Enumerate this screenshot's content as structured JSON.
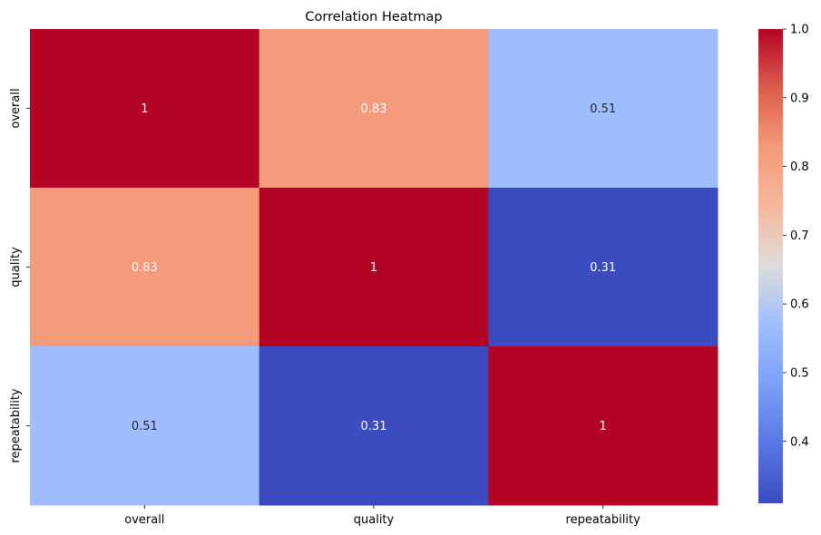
{
  "chart_data": {
    "type": "heatmap",
    "title": "Correlation Heatmap",
    "xlabel": "",
    "ylabel": "",
    "x_categories": [
      "overall",
      "quality",
      "repeatability"
    ],
    "y_categories": [
      "overall",
      "quality",
      "repeatability"
    ],
    "values": [
      [
        1,
        0.83,
        0.51
      ],
      [
        0.83,
        1,
        0.31
      ],
      [
        0.51,
        0.31,
        1
      ]
    ],
    "cell_labels": [
      [
        "1",
        "0.83",
        "0.51"
      ],
      [
        "0.83",
        "1",
        "0.31"
      ],
      [
        "0.51",
        "0.31",
        "1"
      ]
    ],
    "colormap": "coolwarm",
    "vmin": 0.31,
    "vmax": 1.0,
    "colorbar_ticks": [
      {
        "value": 0.4,
        "label": "0.4"
      },
      {
        "value": 0.5,
        "label": "0.5"
      },
      {
        "value": 0.6,
        "label": "0.6"
      },
      {
        "value": 0.7,
        "label": "0.7"
      },
      {
        "value": 0.8,
        "label": "0.8"
      },
      {
        "value": 0.9,
        "label": "0.9"
      },
      {
        "value": 1.0,
        "label": "1.0"
      }
    ],
    "colors": {
      "1": "#b40426",
      "0.83": "#f39b7a",
      "0.51": "#9ebeff",
      "0.31": "#3b4cc0"
    }
  }
}
